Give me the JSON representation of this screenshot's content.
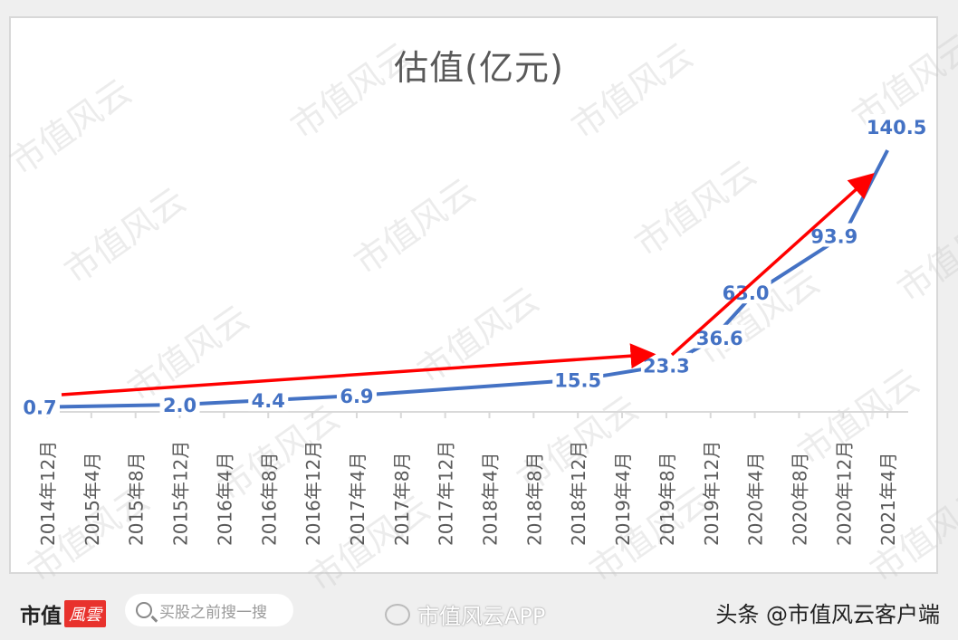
{
  "chart_data": {
    "type": "line",
    "title": "估值(亿元)",
    "xlabel": "",
    "ylabel": "",
    "categories": [
      "2014年12月",
      "2015年4月",
      "2015年8月",
      "2015年12月",
      "2016年4月",
      "2016年8月",
      "2016年12月",
      "2017年4月",
      "2017年8月",
      "2017年12月",
      "2018年4月",
      "2018年8月",
      "2018年12月",
      "2019年4月",
      "2019年8月",
      "2019年12月",
      "2020年4月",
      "2020年8月",
      "2020年12月",
      "2021年4月"
    ],
    "series": [
      {
        "name": "估值(亿元)",
        "color": "#4472c4",
        "points": [
          {
            "category": "2014年12月",
            "value": 0.7
          },
          {
            "category": "2015年12月",
            "value": 2.0
          },
          {
            "category": "2016年8月",
            "value": 4.4
          },
          {
            "category": "2017年4月",
            "value": 6.9
          },
          {
            "category": "2018年12月",
            "value": 15.5
          },
          {
            "category": "2019年8月",
            "value": 23.3
          },
          {
            "category": "2019年12月",
            "value": 36.6
          },
          {
            "category": "2020年4月",
            "value": 63.0
          },
          {
            "category": "2020年12月",
            "value": 93.9
          },
          {
            "category": "2021年4月",
            "value": 140.5
          }
        ]
      }
    ],
    "annotations": [
      {
        "type": "arrow",
        "color": "#ff0000",
        "from": "2014年12月",
        "to": "2019年8月",
        "meaning": "slow growth"
      },
      {
        "type": "arrow",
        "color": "#ff0000",
        "from": "2019年8月",
        "to": "2021年4月",
        "meaning": "rapid growth"
      }
    ],
    "ylim": [
      0,
      150
    ],
    "grid": false,
    "legend": "none",
    "data_labels": true
  },
  "chart": {
    "title": "估值(亿元)",
    "watermark": "市值风云"
  },
  "footer": {
    "brand": "市值",
    "brand_badge": "風雲",
    "search_placeholder": "买股之前搜一搜",
    "weibo_label": "市值风云APP",
    "toutiao_label": "头条 @市值风云客户端"
  }
}
